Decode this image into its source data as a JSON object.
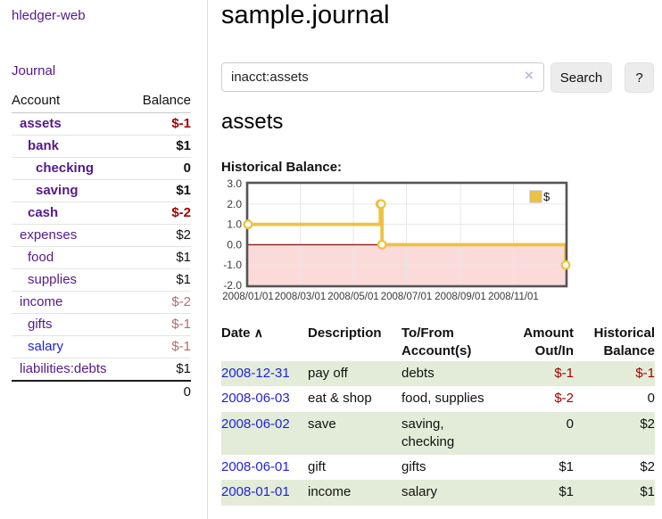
{
  "colors": {
    "link_purple": "#551a8b",
    "link_blue": "#2222dd",
    "negative_strong": "#a40000",
    "negative_soft": "#b56c6c",
    "row_stripe_green": "#e3ecd9",
    "button_bg": "#ececec",
    "chart_series_gold": "#edc240",
    "chart_marker_fill": "#ffffff",
    "chart_negative_fill": "#fbdada",
    "chart_zero_line": "#8b1a1a",
    "chart_border": "#545454",
    "chart_grid": "#e7e7e7",
    "chart_tick_text": "#3a3a3a"
  },
  "sidebar": {
    "brand": "hledger-web",
    "nav": {
      "journal": "Journal"
    },
    "accounts_table": {
      "headers": {
        "account": "Account",
        "balance": "Balance"
      },
      "rows": [
        {
          "name": "assets",
          "balance": "$-1",
          "depth": 1
        },
        {
          "name": "bank",
          "balance": "$1",
          "depth": 2
        },
        {
          "name": "checking",
          "balance": "0",
          "depth": 3
        },
        {
          "name": "saving",
          "balance": "$1",
          "depth": 3
        },
        {
          "name": "cash",
          "balance": "$-2",
          "depth": 2
        },
        {
          "name": "expenses",
          "balance": "$2",
          "depth": 1
        },
        {
          "name": "food",
          "balance": "$1",
          "depth": 2
        },
        {
          "name": "supplies",
          "balance": "$1",
          "depth": 2
        },
        {
          "name": "income",
          "balance": "$-2",
          "depth": 1
        },
        {
          "name": "gifts",
          "balance": "$-1",
          "depth": 2
        },
        {
          "name": "salary",
          "balance": "$-1",
          "depth": 2
        },
        {
          "name": "liabilities:debts",
          "balance": "$1",
          "depth": 1
        }
      ],
      "total": "0"
    }
  },
  "main": {
    "title": "sample.journal",
    "search": {
      "value": "inacct:assets",
      "clear_icon": "×",
      "search_button": "Search",
      "help_button": "?"
    },
    "account_heading": "assets",
    "section_label": "Historical Balance:"
  },
  "chart_data": {
    "type": "line",
    "style": "step",
    "title": "Historical Balance of assets",
    "series": [
      {
        "name": "$",
        "points": [
          [
            "2008-01-01",
            1
          ],
          [
            "2008-06-01",
            2
          ],
          [
            "2008-06-02",
            2
          ],
          [
            "2008-06-03",
            0
          ],
          [
            "2008-12-31",
            -1
          ]
        ]
      }
    ],
    "xlim": [
      "2008-01-01",
      "2008-12-31"
    ],
    "ylim": [
      -2,
      3
    ],
    "yticks": [
      {
        "v": 3,
        "label": "3.0"
      },
      {
        "v": 2,
        "label": "2.0"
      },
      {
        "v": 1,
        "label": "1.0"
      },
      {
        "v": 0,
        "label": "0.0"
      },
      {
        "v": -1,
        "label": "-1.0"
      },
      {
        "v": -2,
        "label": "-2.0"
      }
    ],
    "xticks": [
      {
        "date": "2008-01-01",
        "label": "2008/01/01"
      },
      {
        "date": "2008-03-01",
        "label": "2008/03/01"
      },
      {
        "date": "2008-05-01",
        "label": "2008/05/01"
      },
      {
        "date": "2008-07-01",
        "label": "2008/07/01"
      },
      {
        "date": "2008-09-01",
        "label": "2008/09/01"
      },
      {
        "date": "2008-11-01",
        "label": "2008/11/01"
      }
    ],
    "legend": {
      "label": "$",
      "position": "top-right"
    },
    "grid": true,
    "negative_region_shaded": true
  },
  "register": {
    "headers": {
      "date": {
        "label": "Date",
        "sort_icon": "∧"
      },
      "description": "Description",
      "account": {
        "line1": "To/From",
        "line2": "Account(s)"
      },
      "amount": {
        "line1": "Amount",
        "line2": "Out/In"
      },
      "balance": {
        "line1": "Historical",
        "line2": "Balance"
      }
    },
    "rows": [
      {
        "date": "2008-12-31",
        "description": "pay off",
        "accounts": "debts",
        "amount": "$-1",
        "balance": "$-1"
      },
      {
        "date": "2008-06-03",
        "description": "eat & shop",
        "accounts": "food, supplies",
        "amount": "$-2",
        "balance": "0"
      },
      {
        "date": "2008-06-02",
        "description": "save",
        "accounts": "saving, checking",
        "amount": "0",
        "balance": "$2"
      },
      {
        "date": "2008-06-01",
        "description": "gift",
        "accounts": "gifts",
        "amount": "$1",
        "balance": "$2"
      },
      {
        "date": "2008-01-01",
        "description": "income",
        "accounts": "salary",
        "amount": "$1",
        "balance": "$1"
      }
    ]
  }
}
